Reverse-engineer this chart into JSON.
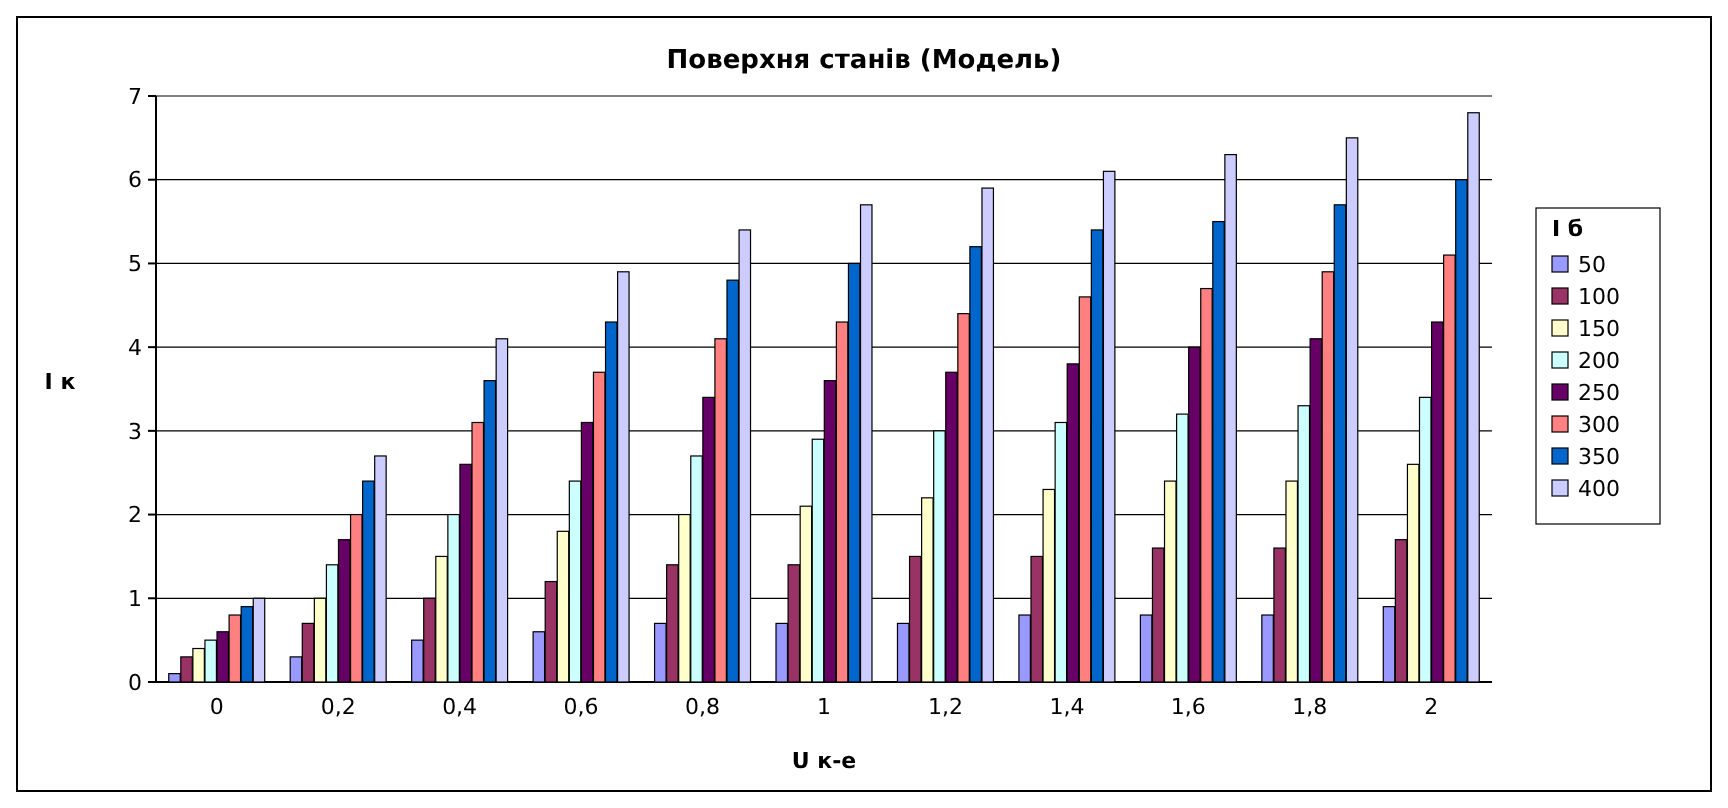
{
  "chart_data": {
    "type": "bar",
    "title": "Поверхня станів (Модель)",
    "xlabel": "U к-е",
    "ylabel": "I к",
    "legend_title": "I б",
    "categories": [
      "0",
      "0,2",
      "0,4",
      "0,6",
      "0,8",
      "1",
      "1,2",
      "1,4",
      "1,6",
      "1,8",
      "2"
    ],
    "series": [
      {
        "name": "50",
        "color": "#9999ff",
        "values": [
          0.1,
          0.3,
          0.5,
          0.6,
          0.7,
          0.7,
          0.7,
          0.8,
          0.8,
          0.8,
          0.9
        ]
      },
      {
        "name": "100",
        "color": "#993366",
        "values": [
          0.3,
          0.7,
          1.0,
          1.2,
          1.4,
          1.4,
          1.5,
          1.5,
          1.6,
          1.6,
          1.7
        ]
      },
      {
        "name": "150",
        "color": "#ffffcc",
        "values": [
          0.4,
          1.0,
          1.5,
          1.8,
          2.0,
          2.1,
          2.2,
          2.3,
          2.4,
          2.4,
          2.6
        ]
      },
      {
        "name": "200",
        "color": "#ccffff",
        "values": [
          0.5,
          1.4,
          2.0,
          2.4,
          2.7,
          2.9,
          3.0,
          3.1,
          3.2,
          3.3,
          3.4
        ]
      },
      {
        "name": "250",
        "color": "#660066",
        "values": [
          0.6,
          1.7,
          2.6,
          3.1,
          3.4,
          3.6,
          3.7,
          3.8,
          4.0,
          4.1,
          4.3
        ]
      },
      {
        "name": "300",
        "color": "#ff8080",
        "values": [
          0.8,
          2.0,
          3.1,
          3.7,
          4.1,
          4.3,
          4.4,
          4.6,
          4.7,
          4.9,
          5.1
        ]
      },
      {
        "name": "350",
        "color": "#0066cc",
        "values": [
          0.9,
          2.4,
          3.6,
          4.3,
          4.8,
          5.0,
          5.2,
          5.4,
          5.5,
          5.7,
          6.0
        ]
      },
      {
        "name": "400",
        "color": "#ccccff",
        "values": [
          1.0,
          2.7,
          4.1,
          4.9,
          5.4,
          5.7,
          5.9,
          6.1,
          6.3,
          6.5,
          6.8
        ]
      }
    ],
    "ylim": [
      0,
      7
    ],
    "yticks": [
      0,
      1,
      2,
      3,
      4,
      5,
      6,
      7
    ],
    "grid": "y",
    "legend": "right"
  }
}
